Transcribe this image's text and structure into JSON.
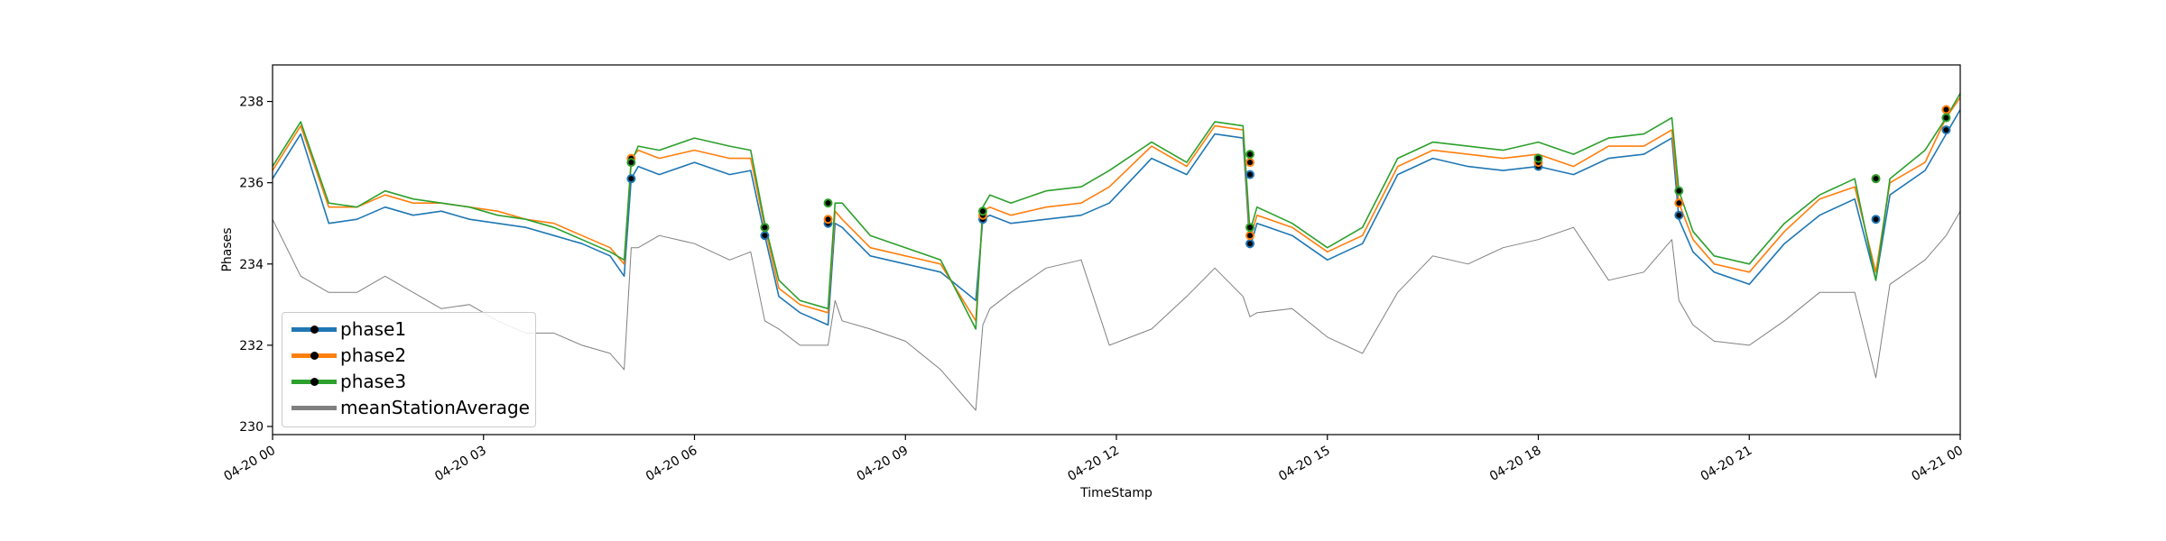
{
  "chart_data": {
    "type": "line",
    "xlabel": "TimeStamp",
    "ylabel": "Phases",
    "ylim": [
      229.8,
      238.9
    ],
    "xlim_hours": [
      0,
      24
    ],
    "grid": false,
    "legend_position": "lower-left",
    "y_ticks": [
      "230",
      "232",
      "234",
      "236",
      "238"
    ],
    "y_tick_values": [
      230,
      232,
      234,
      236,
      238
    ],
    "x_ticks": [
      "04-20 00",
      "04-20 03",
      "04-20 06",
      "04-20 09",
      "04-20 12",
      "04-20 15",
      "04-20 18",
      "04-20 21",
      "04-21 00"
    ],
    "x_tick_hours": [
      0,
      3,
      6,
      9,
      12,
      15,
      18,
      21,
      24
    ],
    "x": [
      0,
      0.4,
      0.8,
      1.2,
      1.6,
      2.0,
      2.4,
      2.8,
      3.2,
      3.6,
      4.0,
      4.4,
      4.8,
      5.0,
      5.1,
      5.2,
      5.5,
      6.0,
      6.5,
      6.8,
      7.0,
      7.2,
      7.5,
      7.9,
      8.0,
      8.1,
      8.5,
      9.0,
      9.5,
      10.0,
      10.1,
      10.2,
      10.5,
      11.0,
      11.5,
      11.9,
      12.5,
      13.0,
      13.4,
      13.8,
      13.9,
      14.0,
      14.5,
      15.0,
      15.5,
      16.0,
      16.5,
      17.0,
      17.5,
      18.0,
      18.5,
      19.0,
      19.5,
      19.9,
      20.0,
      20.2,
      20.5,
      21.0,
      21.5,
      22.0,
      22.5,
      22.8,
      23.0,
      23.5,
      23.8,
      24.0
    ],
    "series": [
      {
        "name": "phase1",
        "color": "#1f77b4",
        "values": [
          236.1,
          237.2,
          235.0,
          235.1,
          235.4,
          235.2,
          235.3,
          235.1,
          235.0,
          234.9,
          234.7,
          234.5,
          234.2,
          233.7,
          236.1,
          236.4,
          236.2,
          236.5,
          236.2,
          236.3,
          234.7,
          233.2,
          232.8,
          232.5,
          235.0,
          234.9,
          234.2,
          234.0,
          233.8,
          233.1,
          235.1,
          235.2,
          235.0,
          235.1,
          235.2,
          235.5,
          236.6,
          236.2,
          237.2,
          237.1,
          234.4,
          235.0,
          234.7,
          234.1,
          234.5,
          236.2,
          236.6,
          236.4,
          236.3,
          236.4,
          236.2,
          236.6,
          236.7,
          237.1,
          235.1,
          234.3,
          233.8,
          233.5,
          234.5,
          235.2,
          235.6,
          233.6,
          235.7,
          236.3,
          237.2,
          237.8
        ]
      },
      {
        "name": "phase2",
        "color": "#ff7f0e",
        "values": [
          236.3,
          237.4,
          235.4,
          235.4,
          235.7,
          235.5,
          235.5,
          235.4,
          235.3,
          235.1,
          235.0,
          234.7,
          234.4,
          234.0,
          236.6,
          236.8,
          236.6,
          236.8,
          236.6,
          236.6,
          234.9,
          233.4,
          233.0,
          232.8,
          235.3,
          235.1,
          234.4,
          234.2,
          234.0,
          232.6,
          235.3,
          235.4,
          235.2,
          235.4,
          235.5,
          235.9,
          236.9,
          236.4,
          237.4,
          237.3,
          234.6,
          235.2,
          234.9,
          234.3,
          234.7,
          236.4,
          236.8,
          236.7,
          236.6,
          236.7,
          236.4,
          236.9,
          236.9,
          237.3,
          235.5,
          234.6,
          234.0,
          233.8,
          234.8,
          235.6,
          235.9,
          233.8,
          236.0,
          236.5,
          237.6,
          238.1
        ]
      },
      {
        "name": "phase3",
        "color": "#2ca02c",
        "values": [
          236.4,
          237.5,
          235.5,
          235.4,
          235.8,
          235.6,
          235.5,
          235.4,
          235.2,
          235.1,
          234.9,
          234.6,
          234.3,
          234.1,
          236.5,
          236.9,
          236.8,
          237.1,
          236.9,
          236.8,
          235.0,
          233.6,
          233.1,
          232.9,
          235.5,
          235.5,
          234.7,
          234.4,
          234.1,
          232.4,
          235.4,
          235.7,
          235.5,
          235.8,
          235.9,
          236.3,
          237.0,
          236.5,
          237.5,
          237.4,
          234.8,
          235.4,
          235.0,
          234.4,
          234.9,
          236.6,
          237.0,
          236.9,
          236.8,
          237.0,
          236.7,
          237.1,
          237.2,
          237.6,
          235.8,
          234.8,
          234.2,
          234.0,
          235.0,
          235.7,
          236.1,
          233.6,
          236.1,
          236.8,
          237.6,
          238.2
        ]
      },
      {
        "name": "meanStationAverage",
        "color": "#808080",
        "values": [
          235.1,
          233.7,
          233.3,
          233.3,
          233.7,
          233.3,
          232.9,
          233.0,
          232.6,
          232.3,
          232.3,
          232.0,
          231.8,
          231.4,
          234.4,
          234.4,
          234.7,
          234.5,
          234.1,
          234.3,
          232.6,
          232.4,
          232.0,
          232.0,
          233.1,
          232.6,
          232.4,
          232.1,
          231.4,
          230.4,
          232.5,
          232.9,
          233.3,
          233.9,
          234.1,
          232.0,
          232.4,
          233.2,
          233.9,
          233.2,
          232.7,
          232.8,
          232.9,
          232.2,
          231.8,
          233.3,
          234.2,
          234.0,
          234.4,
          234.6,
          234.9,
          233.6,
          233.8,
          234.6,
          233.1,
          232.5,
          232.1,
          232.0,
          232.6,
          233.3,
          233.3,
          231.2,
          233.5,
          234.1,
          234.7,
          235.3
        ]
      }
    ],
    "event_markers": [
      {
        "x": 5.1,
        "values": [
          236.1,
          236.6,
          236.5
        ]
      },
      {
        "x": 7.0,
        "values": [
          234.7,
          234.9,
          234.9
        ]
      },
      {
        "x": 7.9,
        "values": [
          235.0,
          235.1,
          235.5
        ]
      },
      {
        "x": 10.1,
        "values": [
          235.1,
          235.2,
          235.3
        ]
      },
      {
        "x": 13.9,
        "values": [
          234.5,
          234.7,
          234.9
        ]
      },
      {
        "x": 13.9,
        "values": [
          236.2,
          236.5,
          236.7
        ]
      },
      {
        "x": 18.0,
        "values": [
          236.4,
          236.5,
          236.6
        ]
      },
      {
        "x": 20.0,
        "values": [
          235.2,
          235.5,
          235.8
        ]
      },
      {
        "x": 22.8,
        "values": [
          235.1,
          236.1,
          236.1
        ]
      },
      {
        "x": 23.8,
        "values": [
          237.3,
          237.8,
          237.6
        ]
      }
    ]
  }
}
